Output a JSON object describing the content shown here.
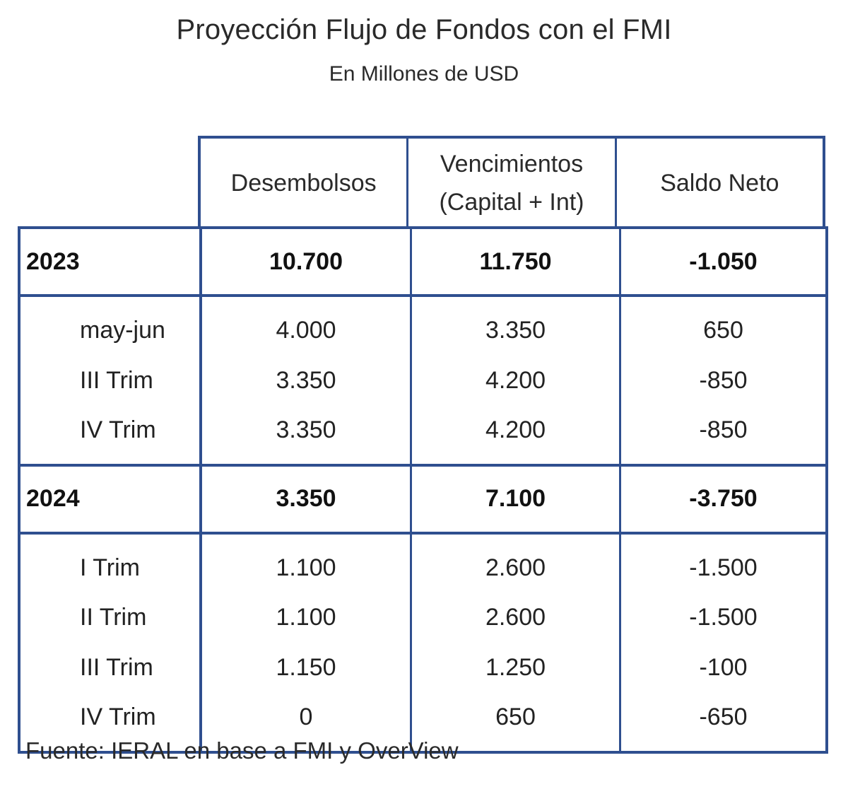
{
  "title": "Proyección Flujo de Fondos con el FMI",
  "subtitle": "En Millones de USD",
  "colors": {
    "border": "#2f4f8f",
    "text": "#222222",
    "background": "#ffffff"
  },
  "table": {
    "headers": {
      "desembolsos": "Desembolsos",
      "vencimientos_line1": "Vencimientos",
      "vencimientos_line2": "(Capital + Int)",
      "saldo_neto": "Saldo Neto"
    },
    "years": [
      {
        "label": "2023",
        "desembolsos": "10.700",
        "vencimientos": "11.750",
        "saldo_neto": "-1.050",
        "periods": [
          {
            "label": "may-jun",
            "desembolsos": "4.000",
            "vencimientos": "3.350",
            "saldo_neto": "650"
          },
          {
            "label": "III Trim",
            "desembolsos": "3.350",
            "vencimientos": "4.200",
            "saldo_neto": "-850"
          },
          {
            "label": "IV Trim",
            "desembolsos": "3.350",
            "vencimientos": "4.200",
            "saldo_neto": "-850"
          }
        ]
      },
      {
        "label": "2024",
        "desembolsos": "3.350",
        "vencimientos": "7.100",
        "saldo_neto": "-3.750",
        "periods": [
          {
            "label": "I Trim",
            "desembolsos": "1.100",
            "vencimientos": "2.600",
            "saldo_neto": "-1.500"
          },
          {
            "label": "II Trim",
            "desembolsos": "1.100",
            "vencimientos": "2.600",
            "saldo_neto": "-1.500"
          },
          {
            "label": "III Trim",
            "desembolsos": "1.150",
            "vencimientos": "1.250",
            "saldo_neto": "-100"
          },
          {
            "label": "IV Trim",
            "desembolsos": "0",
            "vencimientos": "650",
            "saldo_neto": "-650"
          }
        ]
      }
    ]
  },
  "source": "Fuente: IERAL en base a FMI y OverView"
}
